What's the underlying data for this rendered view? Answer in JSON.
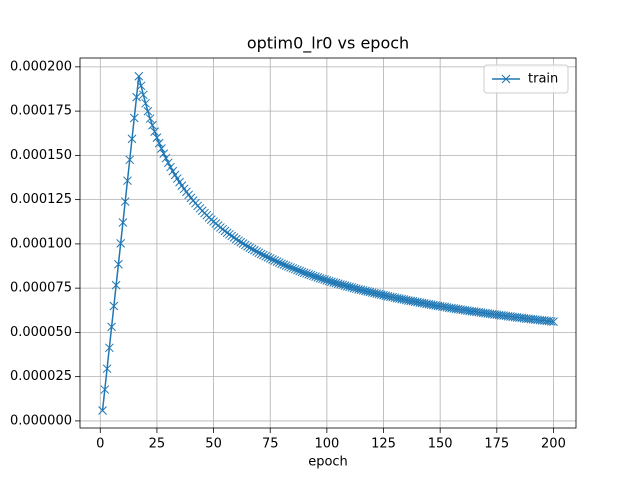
{
  "chart_data": {
    "type": "line",
    "title": "optim0_lr0 vs epoch",
    "x_label": "epoch",
    "x": [
      1,
      2,
      3,
      4,
      5,
      6,
      7,
      8,
      9,
      10,
      11,
      12,
      13,
      14,
      15,
      16,
      17,
      18,
      19,
      20,
      21,
      22,
      23,
      24,
      25,
      26,
      27,
      28,
      29,
      30,
      31,
      32,
      33,
      34,
      35,
      36,
      37,
      38,
      39,
      40,
      41,
      42,
      43,
      44,
      45,
      46,
      47,
      48,
      49,
      50,
      51,
      52,
      53,
      54,
      55,
      56,
      57,
      58,
      59,
      60,
      61,
      62,
      63,
      64,
      65,
      66,
      67,
      68,
      69,
      70,
      71,
      72,
      73,
      74,
      75,
      76,
      77,
      78,
      79,
      80,
      81,
      82,
      83,
      84,
      85,
      86,
      87,
      88,
      89,
      90,
      91,
      92,
      93,
      94,
      95,
      96,
      97,
      98,
      99,
      100,
      101,
      102,
      103,
      104,
      105,
      106,
      107,
      108,
      109,
      110,
      111,
      112,
      113,
      114,
      115,
      116,
      117,
      118,
      119,
      120,
      121,
      122,
      123,
      124,
      125,
      126,
      127,
      128,
      129,
      130,
      131,
      132,
      133,
      134,
      135,
      136,
      137,
      138,
      139,
      140,
      141,
      142,
      143,
      144,
      145,
      146,
      147,
      148,
      149,
      150,
      151,
      152,
      153,
      154,
      155,
      156,
      157,
      158,
      159,
      160,
      161,
      162,
      163,
      164,
      165,
      166,
      167,
      168,
      169,
      170,
      171,
      172,
      173,
      174,
      175,
      176,
      177,
      178,
      179,
      180,
      181,
      182,
      183,
      184,
      185,
      186,
      187,
      188,
      189,
      190,
      191,
      192,
      193,
      194,
      195,
      196,
      197,
      198,
      199,
      200
    ],
    "series": [
      {
        "name": "train",
        "color": "#1f77b4",
        "marker": "x",
        "values": [
          5.9e-06,
          1.77e-05,
          2.95e-05,
          4.13e-05,
          5.31e-05,
          6.49e-05,
          7.67e-05,
          8.85e-05,
          0.0001003,
          0.0001121,
          0.0001239,
          0.0001357,
          0.0001475,
          0.0001593,
          0.0001711,
          0.0001829,
          0.0001947,
          0.0001893,
          0.0001842,
          0.0001794,
          0.0001749,
          0.0001708,
          0.000167,
          0.0001634,
          0.00016,
          0.0001569,
          0.0001539,
          0.000151,
          0.0001484,
          0.0001458,
          0.0001434,
          0.0001411,
          0.0001389,
          0.0001369,
          0.0001349,
          0.0001329,
          0.0001311,
          0.0001294,
          0.0001277,
          0.000126,
          0.0001245,
          0.000123,
          0.0001215,
          0.0001201,
          0.0001187,
          0.0001174,
          0.0001162,
          0.0001149,
          0.0001137,
          0.0001126,
          0.0001115,
          0.0001104,
          0.0001093,
          0.0001083,
          0.0001073,
          0.0001063,
          0.0001054,
          0.0001045,
          0.0001036,
          0.0001027,
          0.0001018,
          0.000101,
          0.0001002,
          9.94e-05,
          9.86e-05,
          9.79e-05,
          9.71e-05,
          9.64e-05,
          9.57e-05,
          9.5e-05,
          9.43e-05,
          9.37e-05,
          9.3e-05,
          9.24e-05,
          9.18e-05,
          9.12e-05,
          9.06e-05,
          9e-05,
          8.94e-05,
          8.88e-05,
          8.83e-05,
          8.77e-05,
          8.72e-05,
          8.67e-05,
          8.62e-05,
          8.57e-05,
          8.52e-05,
          8.47e-05,
          8.42e-05,
          8.37e-05,
          8.33e-05,
          8.28e-05,
          8.24e-05,
          8.19e-05,
          8.15e-05,
          8.11e-05,
          8.06e-05,
          8.02e-05,
          7.98e-05,
          7.94e-05,
          7.9e-05,
          7.86e-05,
          7.82e-05,
          7.79e-05,
          7.75e-05,
          7.71e-05,
          7.68e-05,
          7.64e-05,
          7.6e-05,
          7.57e-05,
          7.54e-05,
          7.5e-05,
          7.47e-05,
          7.43e-05,
          7.4e-05,
          7.37e-05,
          7.34e-05,
          7.31e-05,
          7.28e-05,
          7.25e-05,
          7.22e-05,
          7.19e-05,
          7.16e-05,
          7.13e-05,
          7.1e-05,
          7.07e-05,
          7.04e-05,
          7.01e-05,
          6.99e-05,
          6.96e-05,
          6.93e-05,
          6.91e-05,
          6.88e-05,
          6.86e-05,
          6.83e-05,
          6.8e-05,
          6.78e-05,
          6.76e-05,
          6.73e-05,
          6.71e-05,
          6.68e-05,
          6.66e-05,
          6.64e-05,
          6.61e-05,
          6.59e-05,
          6.57e-05,
          6.54e-05,
          6.52e-05,
          6.5e-05,
          6.48e-05,
          6.46e-05,
          6.44e-05,
          6.41e-05,
          6.39e-05,
          6.37e-05,
          6.35e-05,
          6.33e-05,
          6.31e-05,
          6.29e-05,
          6.27e-05,
          6.25e-05,
          6.23e-05,
          6.21e-05,
          6.19e-05,
          6.18e-05,
          6.16e-05,
          6.14e-05,
          6.12e-05,
          6.1e-05,
          6.08e-05,
          6.07e-05,
          6.05e-05,
          6.03e-05,
          6.01e-05,
          6e-05,
          5.98e-05,
          5.96e-05,
          5.95e-05,
          5.93e-05,
          5.91e-05,
          5.9e-05,
          5.88e-05,
          5.86e-05,
          5.85e-05,
          5.83e-05,
          5.82e-05,
          5.8e-05,
          5.78e-05,
          5.77e-05,
          5.75e-05,
          5.74e-05,
          5.72e-05,
          5.71e-05,
          5.69e-05,
          5.68e-05,
          5.67e-05,
          5.65e-05,
          5.64e-05,
          5.62e-05,
          5.61e-05
        ]
      }
    ],
    "xlim": [
      -8.95,
      209.95
    ],
    "xticks": [
      0,
      25,
      50,
      75,
      100,
      125,
      150,
      175,
      200
    ],
    "ylim": [
      -4e-06,
      0.000205
    ],
    "yticks": [
      {
        "value": 0,
        "label": "0.000000"
      },
      {
        "value": 2.5e-05,
        "label": "0.000025"
      },
      {
        "value": 5e-05,
        "label": "0.000050"
      },
      {
        "value": 7.5e-05,
        "label": "0.000075"
      },
      {
        "value": 0.0001,
        "label": "0.000100"
      },
      {
        "value": 0.000125,
        "label": "0.000125"
      },
      {
        "value": 0.00015,
        "label": "0.000150"
      },
      {
        "value": 0.000175,
        "label": "0.000175"
      },
      {
        "value": 0.0002,
        "label": "0.000200"
      }
    ],
    "grid": true,
    "legend": "upper right"
  }
}
